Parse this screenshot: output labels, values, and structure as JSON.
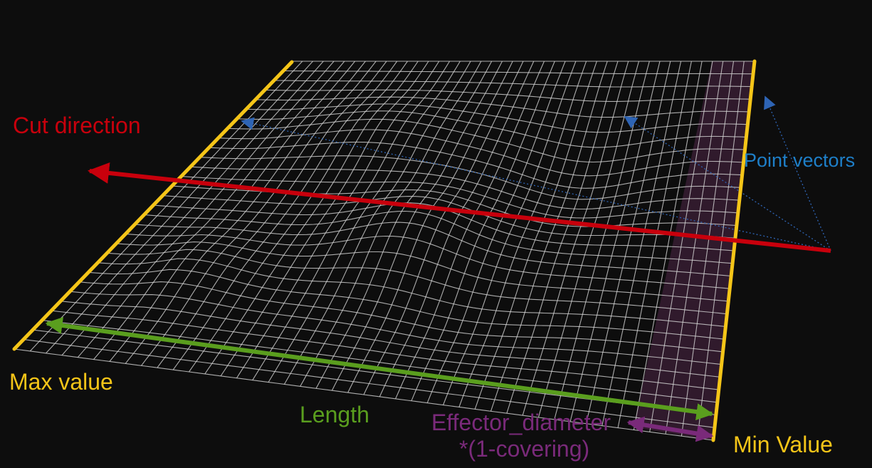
{
  "labels": {
    "cut_direction": "Cut direction",
    "point_vectors": "Point vectors",
    "max_value": "Max value",
    "length": "Length",
    "effector_line1": "Effector_diameter",
    "effector_line2": "*(1-covering)",
    "min_value": "Min Value"
  },
  "colors": {
    "background": "#0d0d0d",
    "mesh": "#d6d6d6",
    "boundary": "#f5c518",
    "cut_arrow": "#c8000c",
    "length_arrow": "#5a9e1e",
    "effector": "#7a2a7a",
    "effector_fill": "#5a2a52",
    "point_vectors": "#2e64b4",
    "point_vectors_text": "#1e7fc8"
  }
}
